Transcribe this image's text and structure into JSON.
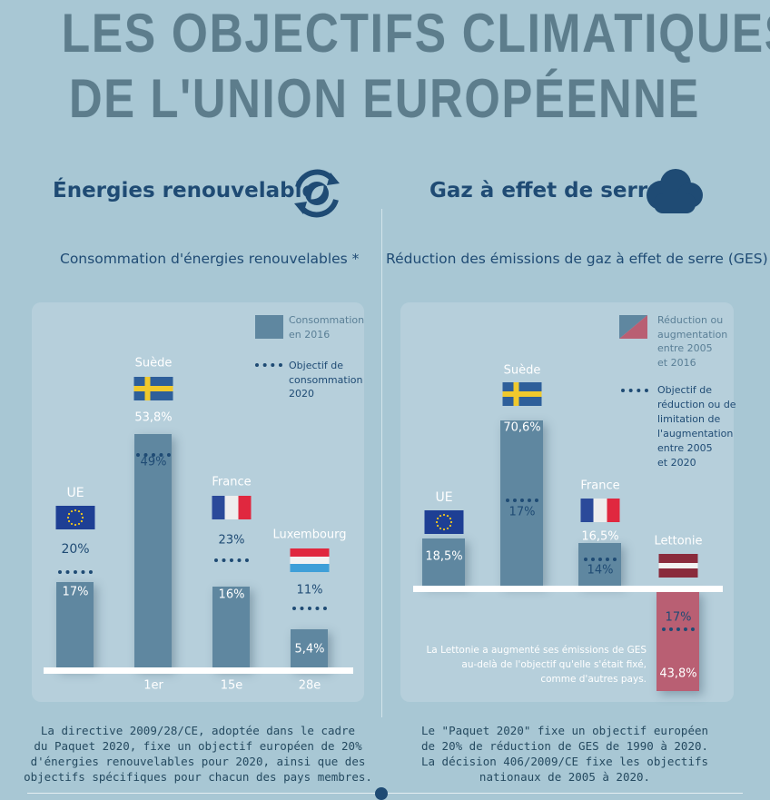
{
  "title": {
    "line1": "LES OBJECTIFS CLIMATIQUES",
    "line2": "DE L'UNION EUROPÉENNE"
  },
  "left": {
    "heading": "Énergies renouvelables",
    "subtitle": "Consommation d'énergies renouvelables *",
    "legend": {
      "bar": "Consommation en 2016",
      "bar_lines": [
        "Consommation",
        "en 2016"
      ],
      "target_lines": [
        "Objectif de",
        "consommation",
        "2020"
      ]
    },
    "footer": [
      "La directive 2009/28/CE, adoptée dans le cadre",
      "du Paquet 2020, fixe un objectif européen de 20%",
      "d'énergies renouvelables pour 2020, ainsi que des",
      "objectifs spécifiques pour chacun des pays membres."
    ]
  },
  "right": {
    "heading": "Gaz à effet de serre",
    "subtitle": "Réduction des émissions de gaz à effet de serre (GES)",
    "legend": {
      "bar_lines": [
        "Réduction ou",
        "augmentation",
        "entre 2005",
        "et 2016"
      ],
      "target_lines": [
        "Objectif de",
        "réduction ou de",
        "limitation de",
        "l'augmentation",
        "entre 2005",
        "et 2020"
      ]
    },
    "note": [
      "La Lettonie a augmenté ses émissions de GES",
      "au-delà de l'objectif qu'elle s'était fixé,",
      "comme d'autres pays."
    ],
    "footer": [
      "Le \"Paquet 2020\" fixe un objectif européen",
      "de 20% de réduction de GES de 1990 à 2020.",
      "La décision 406/2009/CE fixe les objectifs",
      "nationaux de 2005 à 2020."
    ]
  },
  "chart_data": [
    {
      "type": "bar",
      "title": "Consommation d'énergies renouvelables *",
      "unit": "%",
      "categories": [
        "UE",
        "Suède",
        "France",
        "Luxembourg"
      ],
      "series": [
        {
          "name": "Consommation en 2016",
          "values": [
            17,
            53.8,
            16,
            5.4
          ],
          "labels": [
            "17%",
            "53,8%",
            "16%",
            "5,4%"
          ]
        },
        {
          "name": "Objectif de consommation 2020",
          "values": [
            20,
            49,
            23,
            11
          ],
          "labels": [
            "20%",
            "49%",
            "23%",
            "11%"
          ]
        }
      ],
      "ranks": [
        "",
        "1er",
        "15e",
        "28e"
      ],
      "colors": {
        "bar": "#5f87a0",
        "target": "#1f4b74"
      }
    },
    {
      "type": "bar",
      "title": "Réduction des émissions de gaz à effet de serre (GES)",
      "unit": "%",
      "categories": [
        "UE",
        "Suède",
        "France",
        "Lettonie"
      ],
      "series": [
        {
          "name": "Réduction ou augmentation entre 2005 et 2016",
          "values": [
            18.5,
            70.6,
            16.5,
            -43.8
          ],
          "labels": [
            "18,5%",
            "70,6%",
            "16,5%",
            "43,8%"
          ]
        },
        {
          "name": "Objectif de réduction ou de limitation de l'augmentation entre 2005 et 2020",
          "values": [
            null,
            17,
            14,
            -17
          ],
          "labels": [
            "",
            "17%",
            "14%",
            "17%"
          ]
        }
      ],
      "colors": {
        "reduction": "#5f87a0",
        "increase": "#b95f73",
        "target": "#1f4b74"
      }
    }
  ]
}
